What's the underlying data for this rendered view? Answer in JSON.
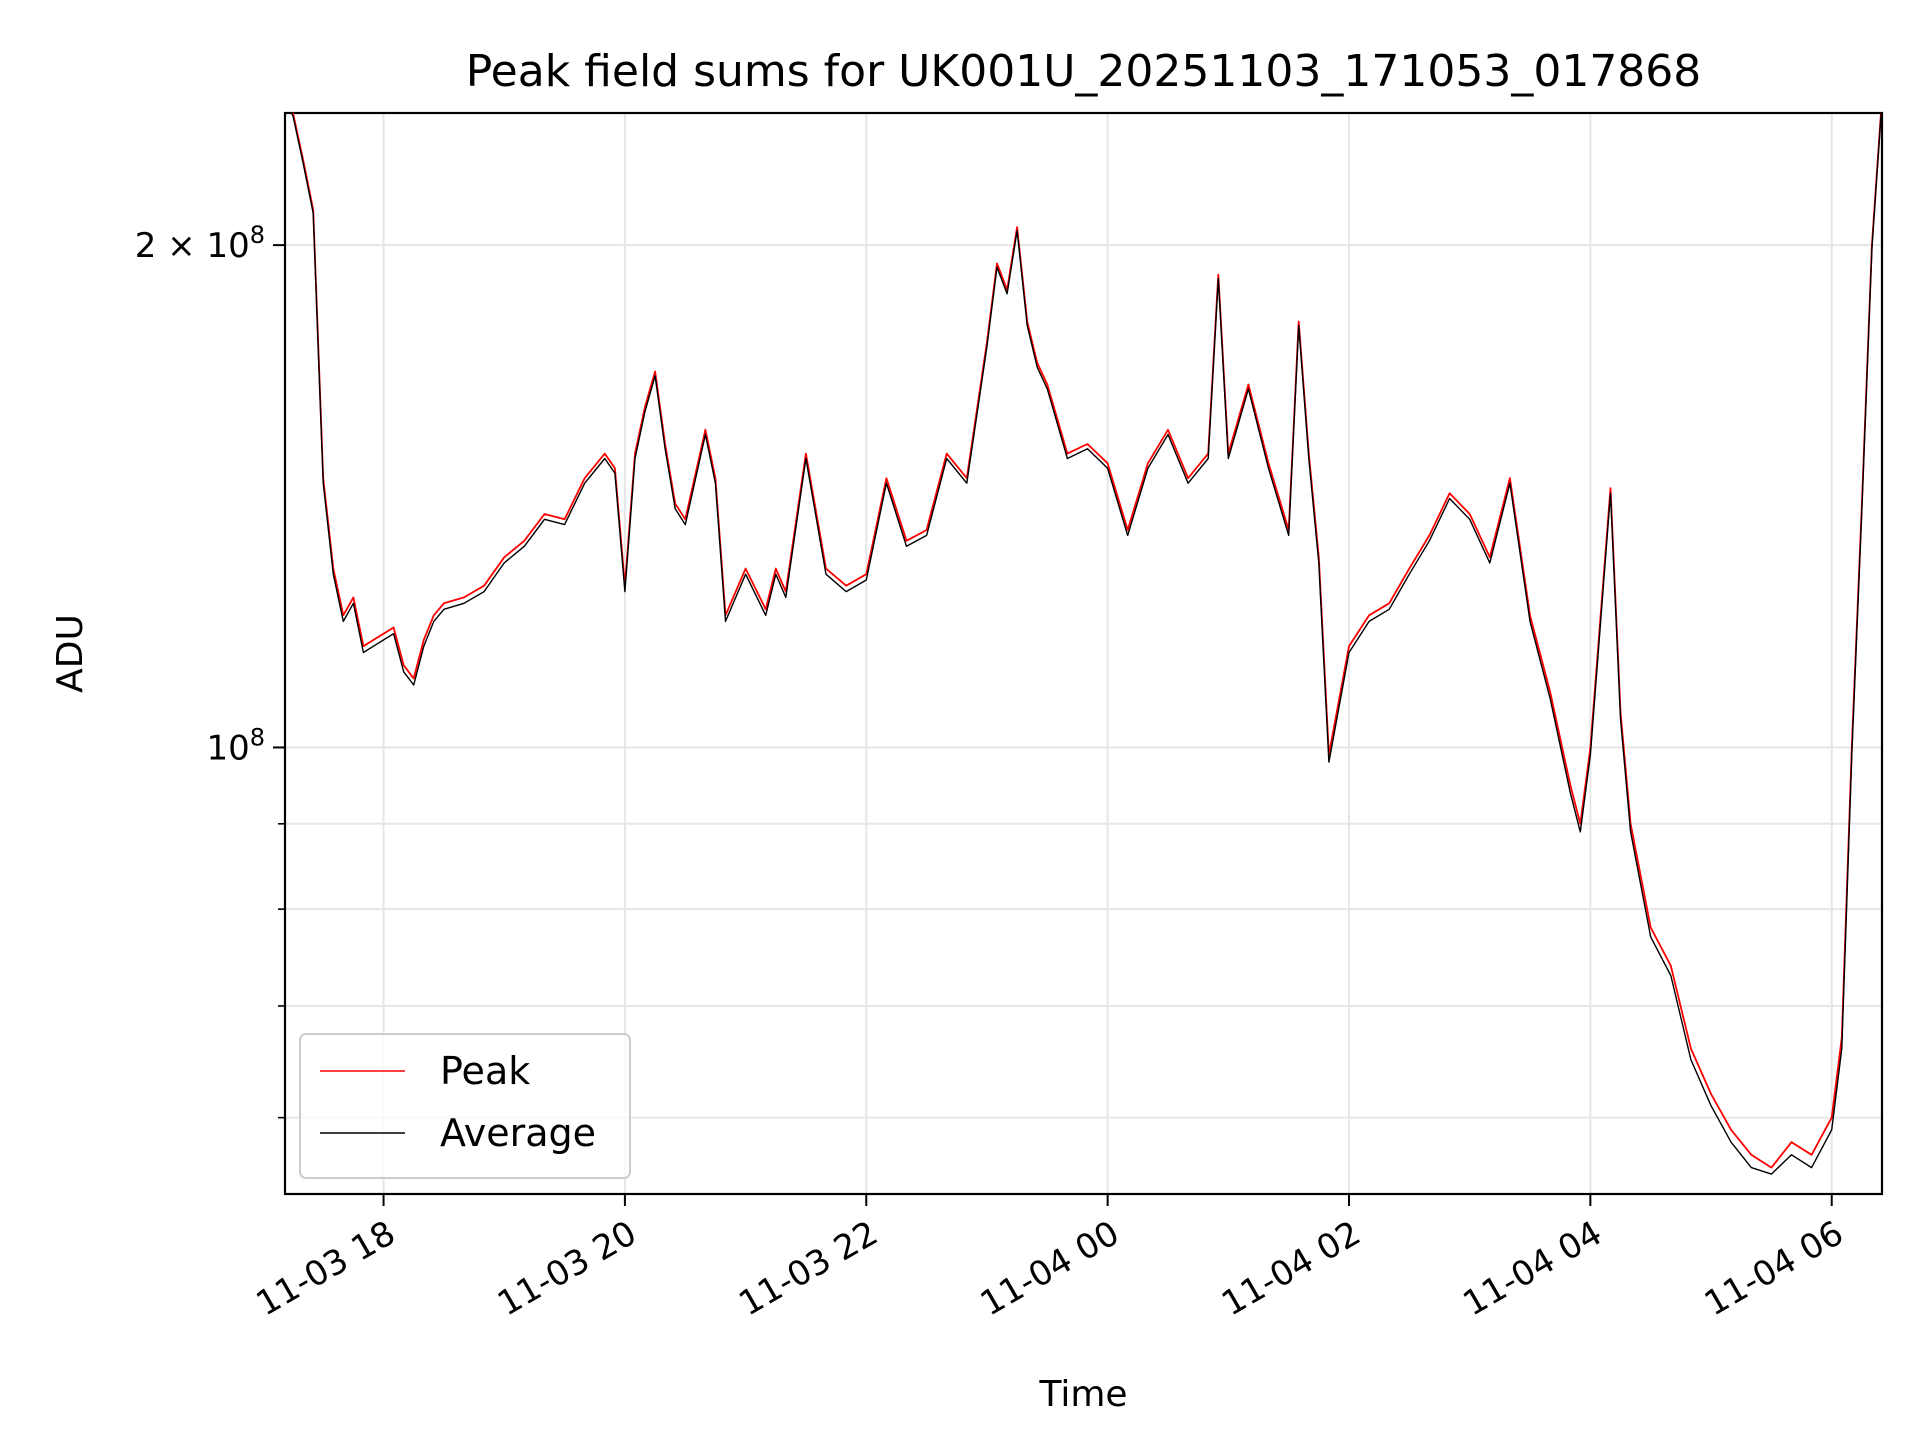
{
  "chart_data": {
    "type": "line",
    "title": "Peak field sums for UK001U_20251103_171053_017868",
    "xlabel": "Time",
    "ylabel": "ADU",
    "y_scale": "log",
    "grid": true,
    "legend_position": "lower-left",
    "xlim": [
      "2025-11-03 17:11",
      "2025-11-04 06:25"
    ],
    "ylim": [
      54000000,
      240000000
    ],
    "x_ticks": [
      "11-03 18",
      "11-03 20",
      "11-03 22",
      "11-04 00",
      "11-04 02",
      "11-04 04",
      "11-04 06"
    ],
    "x_tick_values": [
      "2025-11-03 18:00",
      "2025-11-03 20:00",
      "2025-11-03 22:00",
      "2025-11-04 00:00",
      "2025-11-04 02:00",
      "2025-11-04 04:00",
      "2025-11-04 06:00"
    ],
    "y_ticks_major": [
      {
        "value": 100000000,
        "base": "10",
        "exp": "8",
        "prefix": ""
      },
      {
        "value": 200000000,
        "base": "10",
        "exp": "8",
        "prefix": "2 × "
      }
    ],
    "y_ticks_minor": [
      60000000,
      70000000,
      80000000,
      90000000
    ],
    "x": [
      "2025-11-03 17:11",
      "2025-11-03 17:15",
      "2025-11-03 17:20",
      "2025-11-03 17:25",
      "2025-11-03 17:30",
      "2025-11-03 17:35",
      "2025-11-03 17:40",
      "2025-11-03 17:45",
      "2025-11-03 17:50",
      "2025-11-03 17:55",
      "2025-11-03 18:00",
      "2025-11-03 18:05",
      "2025-11-03 18:10",
      "2025-11-03 18:15",
      "2025-11-03 18:20",
      "2025-11-03 18:25",
      "2025-11-03 18:30",
      "2025-11-03 18:40",
      "2025-11-03 18:50",
      "2025-11-03 19:00",
      "2025-11-03 19:10",
      "2025-11-03 19:20",
      "2025-11-03 19:30",
      "2025-11-03 19:40",
      "2025-11-03 19:50",
      "2025-11-03 19:55",
      "2025-11-03 20:00",
      "2025-11-03 20:05",
      "2025-11-03 20:10",
      "2025-11-03 20:15",
      "2025-11-03 20:20",
      "2025-11-03 20:25",
      "2025-11-03 20:30",
      "2025-11-03 20:40",
      "2025-11-03 20:45",
      "2025-11-03 20:50",
      "2025-11-03 21:00",
      "2025-11-03 21:10",
      "2025-11-03 21:15",
      "2025-11-03 21:20",
      "2025-11-03 21:30",
      "2025-11-03 21:40",
      "2025-11-03 21:50",
      "2025-11-03 22:00",
      "2025-11-03 22:10",
      "2025-11-03 22:20",
      "2025-11-03 22:30",
      "2025-11-03 22:40",
      "2025-11-03 22:50",
      "2025-11-03 23:00",
      "2025-11-03 23:05",
      "2025-11-03 23:10",
      "2025-11-03 23:15",
      "2025-11-03 23:20",
      "2025-11-03 23:25",
      "2025-11-03 23:30",
      "2025-11-03 23:40",
      "2025-11-03 23:50",
      "2025-11-04 00:00",
      "2025-11-04 00:10",
      "2025-11-04 00:20",
      "2025-11-04 00:30",
      "2025-11-04 00:40",
      "2025-11-04 00:50",
      "2025-11-04 00:55",
      "2025-11-04 01:00",
      "2025-11-04 01:10",
      "2025-11-04 01:20",
      "2025-11-04 01:30",
      "2025-11-04 01:35",
      "2025-11-04 01:40",
      "2025-11-04 01:45",
      "2025-11-04 01:50",
      "2025-11-04 02:00",
      "2025-11-04 02:10",
      "2025-11-04 02:20",
      "2025-11-04 02:30",
      "2025-11-04 02:40",
      "2025-11-04 02:50",
      "2025-11-04 03:00",
      "2025-11-04 03:10",
      "2025-11-04 03:20",
      "2025-11-04 03:30",
      "2025-11-04 03:40",
      "2025-11-04 03:50",
      "2025-11-04 03:55",
      "2025-11-04 04:00",
      "2025-11-04 04:10",
      "2025-11-04 04:15",
      "2025-11-04 04:20",
      "2025-11-04 04:30",
      "2025-11-04 04:40",
      "2025-11-04 04:50",
      "2025-11-04 05:00",
      "2025-11-04 05:10",
      "2025-11-04 05:20",
      "2025-11-04 05:30",
      "2025-11-04 05:40",
      "2025-11-04 05:50",
      "2025-11-04 06:00",
      "2025-11-04 06:05",
      "2025-11-04 06:10",
      "2025-11-04 06:15",
      "2025-11-04 06:20",
      "2025-11-04 06:25"
    ],
    "series": [
      {
        "name": "Peak",
        "color": "#ff0000",
        "values": [
          245000000,
          240000000,
          225000000,
          210000000,
          145000000,
          128000000,
          120000000,
          123000000,
          115000000,
          116000000,
          117000000,
          118000000,
          112000000,
          110000000,
          116000000,
          120000000,
          122000000,
          123000000,
          125000000,
          130000000,
          133000000,
          138000000,
          137000000,
          145000000,
          150000000,
          147000000,
          125000000,
          150000000,
          160000000,
          168000000,
          152000000,
          140000000,
          137000000,
          155000000,
          145000000,
          120000000,
          128000000,
          121000000,
          128000000,
          124000000,
          150000000,
          128000000,
          125000000,
          127000000,
          145000000,
          133000000,
          135000000,
          150000000,
          145000000,
          175000000,
          195000000,
          188000000,
          205000000,
          180000000,
          170000000,
          165000000,
          150000000,
          152000000,
          148000000,
          135000000,
          148000000,
          155000000,
          145000000,
          150000000,
          192000000,
          150000000,
          165000000,
          148000000,
          135000000,
          180000000,
          150000000,
          130000000,
          99000000,
          115000000,
          120000000,
          122000000,
          128000000,
          134000000,
          142000000,
          138000000,
          130000000,
          145000000,
          120000000,
          108000000,
          95000000,
          90000000,
          100000000,
          143000000,
          105000000,
          90000000,
          78000000,
          74000000,
          66000000,
          62000000,
          59000000,
          57000000,
          56000000,
          58000000,
          57000000,
          60000000,
          67000000,
          100000000,
          140000000,
          200000000,
          245000000
        ]
      },
      {
        "name": "Average",
        "color": "#000000",
        "values": [
          244000000,
          239000000,
          224000000,
          209000000,
          144000000,
          127000000,
          119000000,
          122000000,
          114000000,
          115000000,
          116000000,
          117000000,
          111000000,
          109000000,
          115000000,
          119000000,
          121000000,
          122000000,
          124000000,
          129000000,
          132000000,
          137000000,
          136000000,
          144000000,
          149000000,
          146000000,
          124000000,
          149000000,
          159000000,
          167000000,
          151000000,
          139000000,
          136000000,
          154000000,
          144000000,
          119000000,
          127000000,
          120000000,
          127000000,
          123000000,
          149000000,
          127000000,
          124000000,
          126000000,
          144000000,
          132000000,
          134000000,
          149000000,
          144000000,
          174000000,
          194000000,
          187000000,
          204000000,
          179000000,
          169000000,
          164000000,
          149000000,
          151000000,
          147000000,
          134000000,
          147000000,
          154000000,
          144000000,
          149000000,
          191000000,
          149000000,
          164000000,
          147000000,
          134000000,
          179000000,
          149000000,
          129000000,
          98000000,
          114000000,
          119000000,
          121000000,
          127000000,
          133000000,
          141000000,
          137000000,
          129000000,
          144000000,
          119000000,
          107000000,
          94000000,
          89000000,
          99000000,
          142000000,
          104000000,
          89000000,
          77000000,
          73000000,
          65000000,
          61000000,
          58000000,
          56000000,
          55500000,
          57000000,
          56000000,
          59000000,
          66000000,
          99000000,
          139000000,
          199000000,
          244000000
        ]
      }
    ],
    "legend": [
      "Peak",
      "Average"
    ]
  }
}
